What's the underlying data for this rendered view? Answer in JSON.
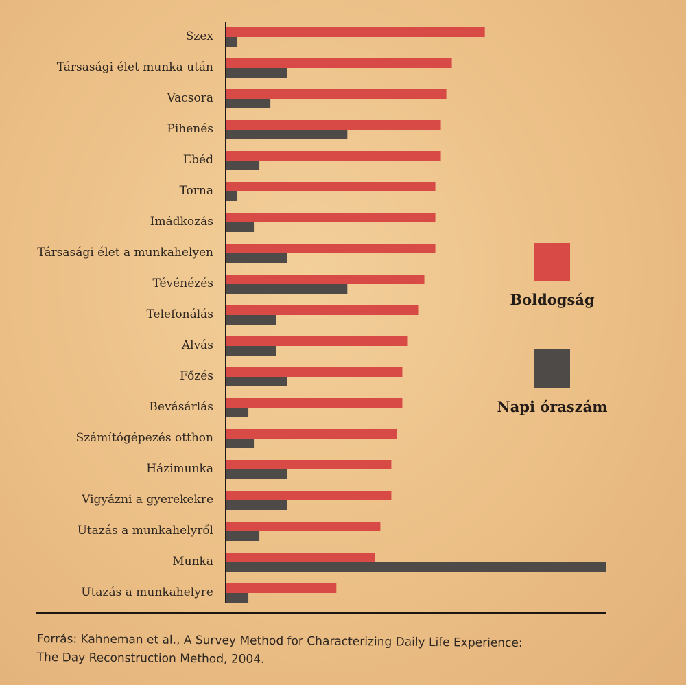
{
  "chart_data": {
    "type": "bar",
    "orientation": "horizontal",
    "categories": [
      "Szex",
      "Társasági élet munka után",
      "Vacsora",
      "Pihenés",
      "Ebéd",
      "Torna",
      "Imádkozás",
      "Társasági élet a munkahelyen",
      "Tévénézés",
      "Telefonálás",
      "Alvás",
      "Főzés",
      "Bevásárlás",
      "Számítógépezés otthon",
      "Házimunka",
      "Vigyázni a gyerekekre",
      "Utazás a munkahelyről",
      "Munka",
      "Utazás a munkahelyre"
    ],
    "series": [
      {
        "name": "Boldogság",
        "color": "#d84a45",
        "values": [
          4.7,
          4.1,
          4.0,
          3.9,
          3.9,
          3.8,
          3.8,
          3.8,
          3.6,
          3.5,
          3.3,
          3.2,
          3.2,
          3.1,
          3.0,
          3.0,
          2.8,
          2.7,
          2.0
        ]
      },
      {
        "name": "Napi óraszám",
        "color": "#4e4a48",
        "values": [
          0.2,
          1.1,
          0.8,
          2.2,
          0.6,
          0.2,
          0.5,
          1.1,
          2.2,
          0.9,
          0.9,
          1.1,
          0.4,
          0.5,
          1.1,
          1.1,
          0.6,
          6.9,
          0.4
        ]
      }
    ],
    "xlim": [
      0,
      6.9
    ],
    "axis_ticks_shown": false,
    "grid": false,
    "legend_position": "right"
  },
  "legend": [
    {
      "label": "Boldogság",
      "color": "#d84a45"
    },
    {
      "label": "Napi óraszám",
      "color": "#4e4a48"
    }
  ],
  "source": {
    "line1": "Forrás: Kahneman et al., A Survey Method for Characterizing Daily Life Experience:",
    "line2": "The Day Reconstruction Method, 2004."
  }
}
